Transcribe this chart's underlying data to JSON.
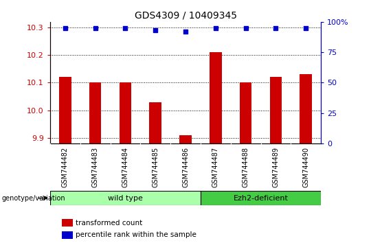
{
  "title": "GDS4309 / 10409345",
  "samples": [
    "GSM744482",
    "GSM744483",
    "GSM744484",
    "GSM744485",
    "GSM744486",
    "GSM744487",
    "GSM744488",
    "GSM744489",
    "GSM744490"
  ],
  "bar_values": [
    10.12,
    10.1,
    10.1,
    10.03,
    9.91,
    10.21,
    10.1,
    10.12,
    10.13
  ],
  "dot_values": [
    95,
    95,
    95,
    93,
    92,
    95,
    95,
    95,
    95
  ],
  "ylim_left": [
    9.88,
    10.32
  ],
  "ylim_right": [
    0,
    100
  ],
  "yticks_left": [
    9.9,
    10.0,
    10.1,
    10.2,
    10.3
  ],
  "yticks_right": [
    0,
    25,
    50,
    75,
    100
  ],
  "bar_color": "#cc0000",
  "dot_color": "#0000cc",
  "bar_width": 0.4,
  "wt_color": "#aaffaa",
  "ez_color": "#44cc44",
  "wt_label": "wild type",
  "ez_label": "Ezh2-deficient",
  "genotype_label": "genotype/variation",
  "legend_bar_label": "transformed count",
  "legend_dot_label": "percentile rank within the sample",
  "tick_label_color_left": "#cc0000",
  "tick_label_color_right": "#0000cc",
  "tick_label_fontsize": 8,
  "sample_fontsize": 7,
  "title_fontsize": 10
}
